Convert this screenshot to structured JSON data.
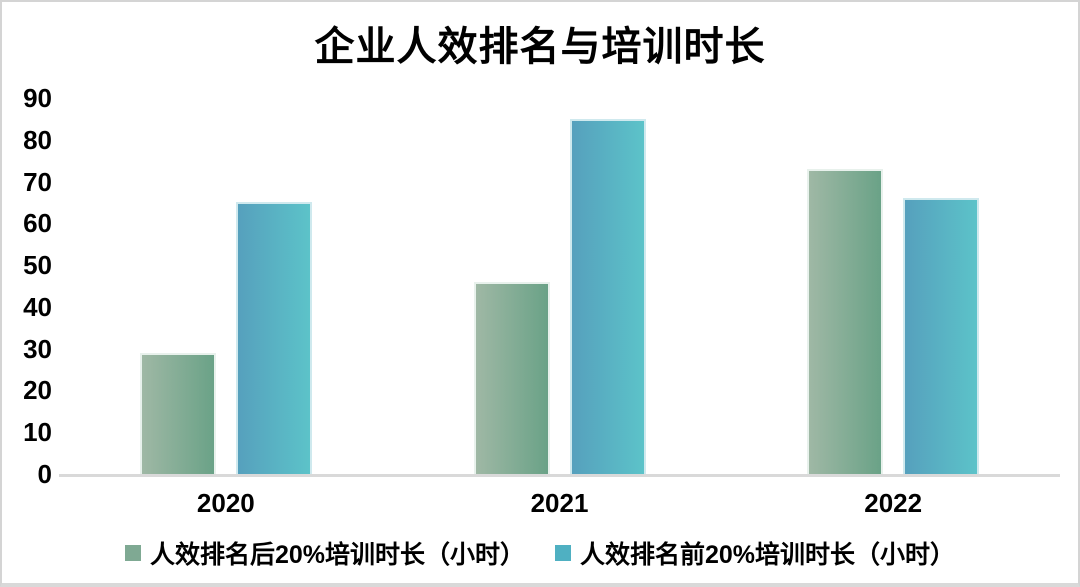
{
  "window": {
    "background": "#ffffff",
    "border_color": "#d4d4d4"
  },
  "chart_data": {
    "type": "bar",
    "title": "企业人效排名与培训时长",
    "categories": [
      "2020",
      "2021",
      "2022"
    ],
    "series": [
      {
        "name": "人效排名后20%培训时长（小时）",
        "values": [
          29,
          46,
          73
        ],
        "gradient_start": "#9fb8a5",
        "gradient_end": "#6aa287",
        "edge_color": "#e8f1ec",
        "legend_color": "#7fa993"
      },
      {
        "name": "人效排名前20%培训时长（小时）",
        "values": [
          65,
          85,
          66
        ],
        "gradient_start": "#56a0bd",
        "gradient_end": "#5cc3c9",
        "edge_color": "#cfe9ee",
        "legend_color": "#4fb0c2"
      }
    ],
    "xlabel": "",
    "ylabel": "",
    "ylim": [
      0,
      90
    ],
    "yticks": [
      0,
      10,
      20,
      30,
      40,
      50,
      60,
      70,
      80,
      90
    ],
    "grid": false,
    "legend_position": "bottom",
    "axis_line_color": "#d9d9d9",
    "text_color": "#000000"
  }
}
